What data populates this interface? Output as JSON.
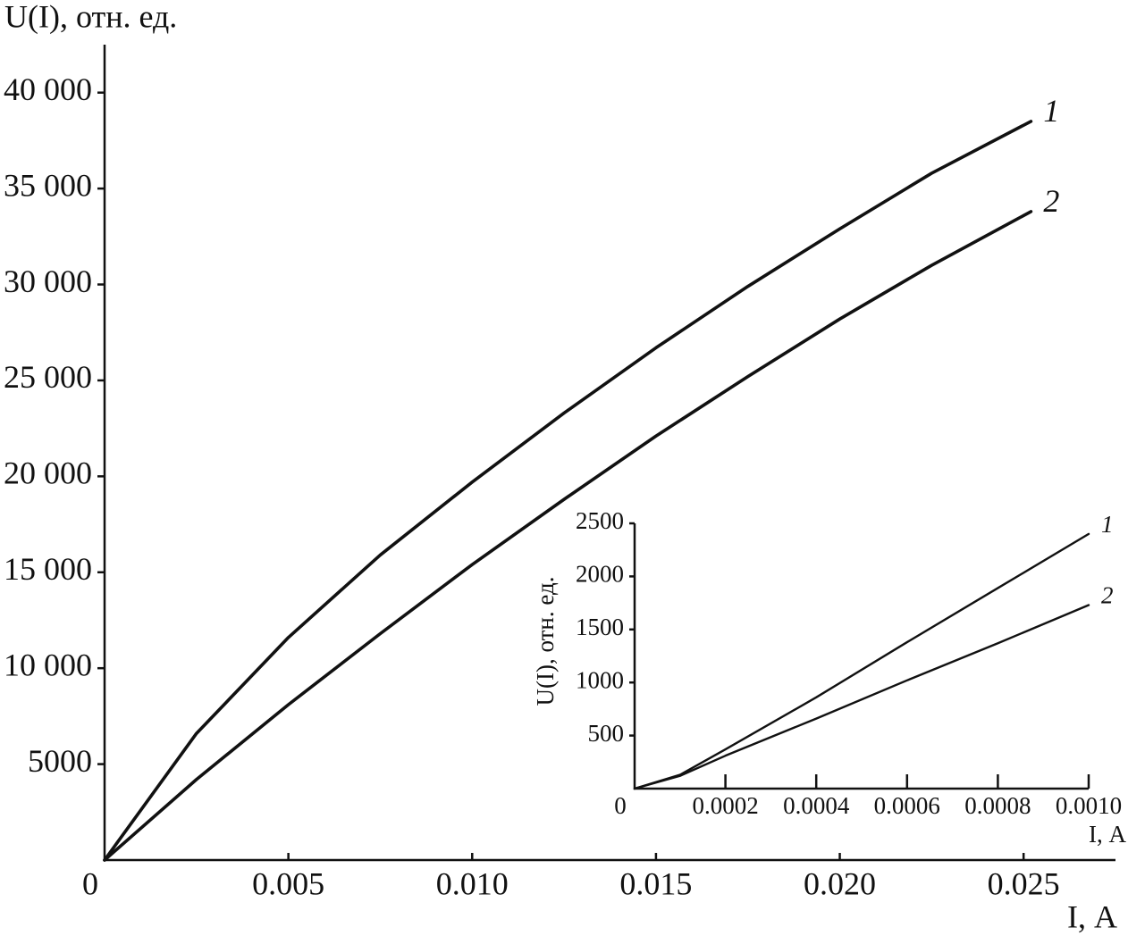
{
  "chart_data": [
    {
      "type": "line",
      "y_label": "U(I), отн. ед.",
      "x_label": "I, А",
      "x": [
        0,
        0.0025,
        0.005,
        0.0075,
        0.01,
        0.0125,
        0.015,
        0.0175,
        0.02,
        0.0225,
        0.0252
      ],
      "series": [
        {
          "name": "1",
          "color": "#111111",
          "values": [
            0,
            6600,
            11600,
            15900,
            19700,
            23300,
            26700,
            29900,
            32900,
            35800,
            38500
          ]
        },
        {
          "name": "2",
          "color": "#111111",
          "values": [
            0,
            4200,
            8100,
            11800,
            15400,
            18800,
            22100,
            25200,
            28200,
            31000,
            33800
          ]
        }
      ],
      "xlim": [
        0,
        0.0275
      ],
      "ylim": [
        0,
        42500
      ],
      "xticks": [
        0,
        0.005,
        {
          "value": 0.01,
          "label": "0.010"
        },
        0.015,
        {
          "value": 0.02,
          "label": "0.020"
        },
        0.025
      ],
      "yticks": [
        5000,
        {
          "value": 10000,
          "label": "10 000"
        },
        {
          "value": 15000,
          "label": "15 000"
        },
        {
          "value": 20000,
          "label": "20 000"
        },
        {
          "value": 25000,
          "label": "25 000"
        },
        {
          "value": 30000,
          "label": "30 000"
        },
        {
          "value": 35000,
          "label": "35 000"
        },
        {
          "value": 40000,
          "label": "40 000"
        }
      ]
    },
    {
      "type": "line",
      "y_label": "U(I), отн. ед.",
      "x_label": "I, А",
      "x": [
        0,
        0.0001,
        0.0002,
        0.0004,
        0.0006,
        0.0008,
        0.001
      ],
      "series": [
        {
          "name": "1",
          "color": "#111111",
          "values": [
            0,
            130,
            370,
            860,
            1380,
            1890,
            2400
          ]
        },
        {
          "name": "2",
          "color": "#111111",
          "values": [
            0,
            120,
            310,
            660,
            1020,
            1370,
            1730
          ]
        }
      ],
      "xlim": [
        0,
        0.001
      ],
      "ylim": [
        0,
        2500
      ],
      "xticks": [
        0,
        0.0002,
        0.0004,
        0.0006,
        0.0008,
        {
          "value": 0.001,
          "label": "0.0010"
        }
      ],
      "yticks": [
        500,
        1000,
        1500,
        2000,
        2500
      ]
    }
  ]
}
